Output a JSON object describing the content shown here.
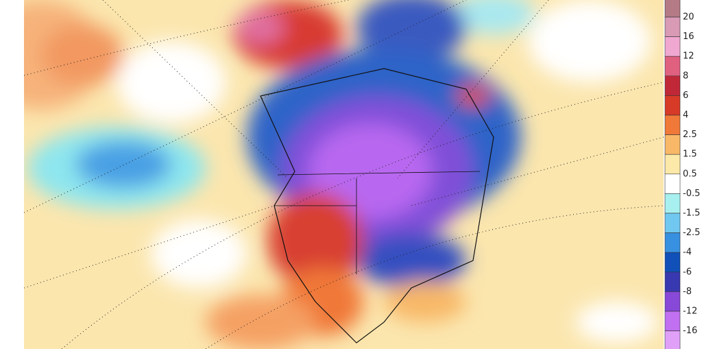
{
  "colorbar": {
    "labels": [
      "20",
      "16",
      "12",
      "8",
      "6",
      "4",
      "2.5",
      "1.5",
      "0.5",
      "-0.5",
      "-1.5",
      "-2.5",
      "-4",
      "-6",
      "-8",
      "-12",
      "-16"
    ],
    "colors": [
      "#b47a86",
      "#d89ab4",
      "#f0a8d0",
      "#e06080",
      "#c02838",
      "#d83a28",
      "#f07838",
      "#f8b868",
      "#fce8a8",
      "#ffffff",
      "#a8f0f0",
      "#70c8f0",
      "#3890e0",
      "#1050b8",
      "#3838b0",
      "#8848d8",
      "#c070f0",
      "#e0a0f8"
    ]
  }
}
